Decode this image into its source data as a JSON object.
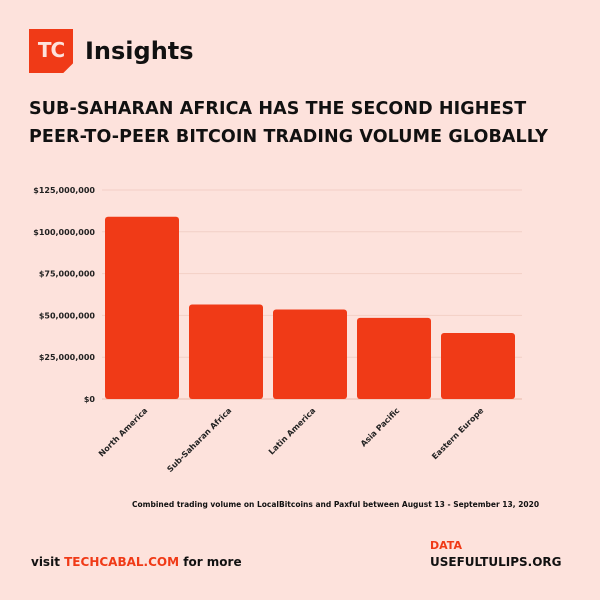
{
  "brand": {
    "logo_mark": "TC",
    "name": "Insights",
    "accent_color": "#f03a17",
    "background_color": "#fde2dc"
  },
  "headline": {
    "line1": "SUB-SAHARAN AFRICA HAS THE SECOND HIGHEST",
    "line2": "PEER-TO-PEER BITCOIN TRADING VOLUME GLOBALLY"
  },
  "chart_data": {
    "type": "bar",
    "title": "SUB-SAHARAN AFRICA HAS THE SECOND HIGHEST PEER-TO-PEER BITCOIN TRADING VOLUME GLOBALLY",
    "categories": [
      "North America",
      "Sub-Saharan Africa",
      "Latin America",
      "Asia Pacific",
      "Eastern Europe"
    ],
    "values": [
      109000000,
      56500000,
      53500000,
      48500000,
      39500000
    ],
    "xlabel": "",
    "ylabel": "",
    "ylim": [
      0,
      125000000
    ],
    "yticks": [
      0,
      25000000,
      50000000,
      75000000,
      100000000,
      125000000
    ],
    "ytick_labels": [
      "$0",
      "$25,000,000",
      "$50,000,000",
      "$75,000,000",
      "$100,000,000",
      "$125,000,000"
    ],
    "grid": true,
    "bar_color": "#f03a17"
  },
  "note": "Combined trading volume on LocalBitcoins and Paxful between August 13 - September 13, 2020",
  "footer": {
    "visit_prefix": "visit",
    "visit_site": "TECHCABAL.COM",
    "visit_suffix": "for more",
    "data_label": "DATA",
    "data_source": "USEFULTULIPS.ORG"
  }
}
